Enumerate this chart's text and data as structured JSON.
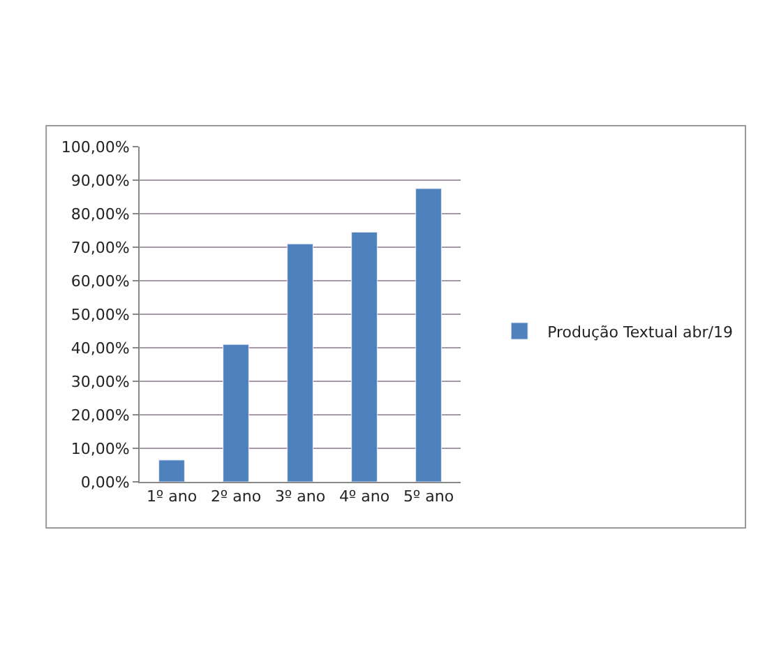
{
  "chart_data": {
    "type": "bar",
    "categories": [
      "1º ano",
      "2º ano",
      "3º ano",
      "4º ano",
      "5º ano"
    ],
    "series": [
      {
        "name": "Produção Textual abr/19",
        "color": "#4f81bd",
        "values": [
          6.5,
          41,
          71,
          74.5,
          87.5
        ]
      }
    ],
    "ylim": [
      0,
      100
    ],
    "yticks": [
      {
        "value": 0,
        "label": "0,00%"
      },
      {
        "value": 10,
        "label": "10,00%"
      },
      {
        "value": 20,
        "label": "20,00%"
      },
      {
        "value": 30,
        "label": "30,00%"
      },
      {
        "value": 40,
        "label": "40,00%"
      },
      {
        "value": 50,
        "label": "50,00%"
      },
      {
        "value": 60,
        "label": "60,00%"
      },
      {
        "value": 70,
        "label": "70,00%"
      },
      {
        "value": 80,
        "label": "80,00%"
      },
      {
        "value": 90,
        "label": "90,00%"
      },
      {
        "value": 100,
        "label": "100,00%"
      }
    ],
    "grid": "y",
    "legend": "right"
  }
}
